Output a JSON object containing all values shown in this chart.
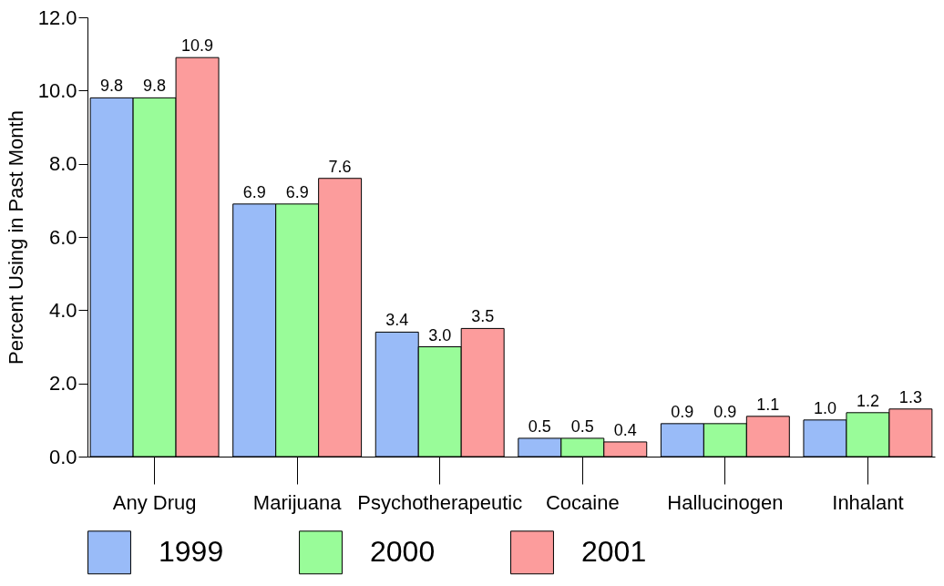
{
  "chart_data": {
    "type": "bar",
    "ylabel": "Percent Using in Past Month",
    "categories": [
      "Any Drug",
      "Marijuana",
      "Psychotherapeutic",
      "Cocaine",
      "Hallucinogen",
      "Inhalant"
    ],
    "series": [
      {
        "name": "1999",
        "color": "#99bbf8",
        "values": [
          9.8,
          6.9,
          3.4,
          0.5,
          0.9,
          1.0
        ],
        "value_labels": [
          "9.8",
          "6.9",
          "3.4",
          "0.5",
          "0.9",
          "1.0"
        ]
      },
      {
        "name": "2000",
        "color": "#99fc99",
        "values": [
          9.8,
          6.9,
          3.0,
          0.5,
          0.9,
          1.2
        ],
        "value_labels": [
          "9.8",
          "6.9",
          "3.0",
          "0.5",
          "0.9",
          "1.2"
        ]
      },
      {
        "name": "2001",
        "color": "#fc9c9c",
        "values": [
          10.9,
          7.6,
          3.5,
          0.4,
          1.1,
          1.3
        ],
        "value_labels": [
          "10.9",
          "7.6",
          "3.5",
          "0.4",
          "1.1",
          "1.3"
        ]
      }
    ],
    "ylim": [
      0,
      12
    ],
    "yticks": [
      {
        "value": 0,
        "label": "0.0"
      },
      {
        "value": 2,
        "label": "2.0"
      },
      {
        "value": 4,
        "label": "4.0"
      },
      {
        "value": 6,
        "label": "6.0"
      },
      {
        "value": 8,
        "label": "8.0"
      },
      {
        "value": 10,
        "label": "10.0"
      },
      {
        "value": 12,
        "label": "12.0"
      }
    ],
    "grid": false,
    "legend": "bottom"
  }
}
